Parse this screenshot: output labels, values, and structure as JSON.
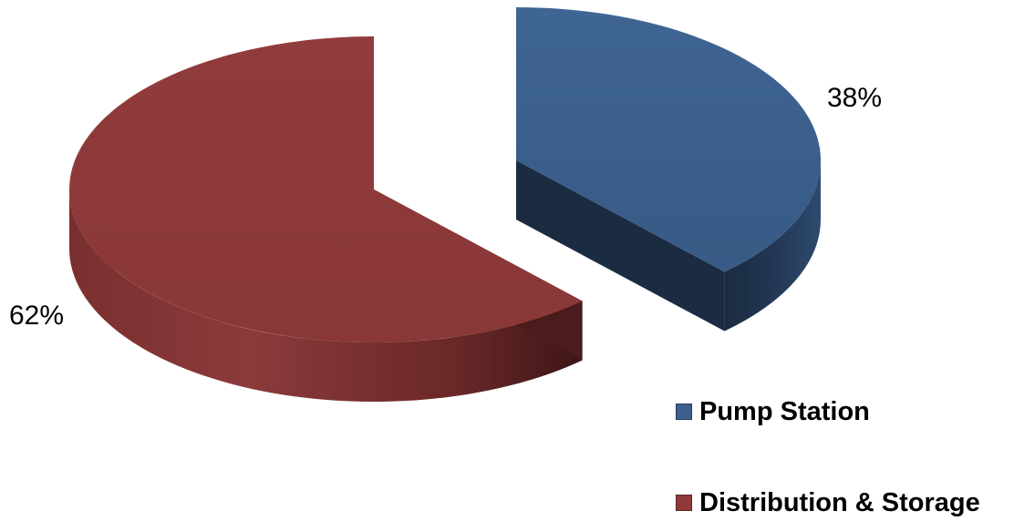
{
  "chart_data": {
    "type": "pie",
    "style": "3d-exploded",
    "categories": [
      "Pump Station",
      "Distribution & Storage"
    ],
    "values": [
      38,
      62
    ],
    "data_labels": [
      "38%",
      "62%"
    ],
    "colors": [
      "#3c5f8c",
      "#8e3a3a"
    ],
    "legend": {
      "position": "bottom-right",
      "entries": [
        "Pump Station",
        "Distribution & Storage"
      ]
    }
  }
}
